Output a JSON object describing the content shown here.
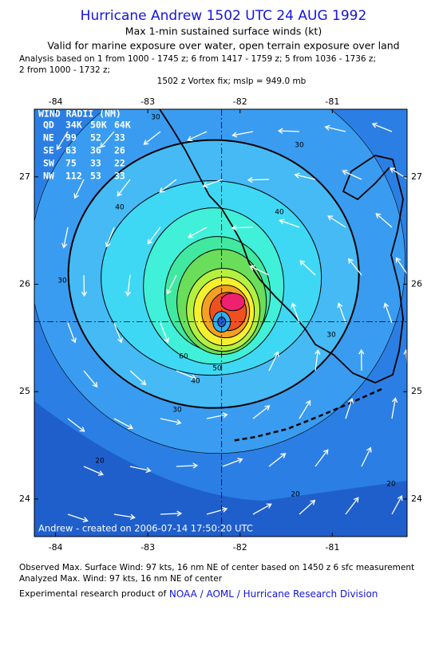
{
  "header": {
    "title": "Hurricane Andrew 1502 UTC 24 AUG 1992",
    "subtitle": "Max 1-min sustained surface winds (kt)",
    "validity": "Valid for marine exposure over water, open terrain exposure over land",
    "analysis_1": "Analysis based on  1 from 1000 - 1745 z;  6 from 1417 - 1759 z;  5 from 1036 - 1736 z;",
    "analysis_2": "2 from 1000 - 1732 z;",
    "vortex_fix": "1502 z Vortex fix; mslp = 949.0 mb"
  },
  "map": {
    "xlim": [
      -84.23,
      -80.19
    ],
    "ylim": [
      23.65,
      27.63
    ],
    "lon_ticks": [
      -84,
      -83,
      -82,
      -81
    ],
    "lat_ticks": [
      24,
      25,
      26,
      27
    ],
    "center": {
      "lon": -82.2,
      "lat": 25.65
    },
    "wind_radii": {
      "title": "WIND RADII (NM)",
      "columns": [
        "QD",
        "34K",
        "50K",
        "64K"
      ],
      "rows": [
        [
          "NE",
          "99",
          "52",
          "33"
        ],
        [
          "SE",
          "63",
          "36",
          "26"
        ],
        [
          "SW",
          "75",
          "33",
          "22"
        ],
        [
          "NW",
          "112",
          "53",
          "33"
        ]
      ]
    },
    "contour_labels": [
      30,
      30,
      40,
      40,
      30,
      30,
      60,
      50,
      40,
      30,
      20,
      20,
      20
    ],
    "credit": "Andrew - created on 2006-07-14 17:50:20 UTC"
  },
  "footer": {
    "observed": "Observed Max. Surface Wind: 97 kts, 16 nm NE of center based on 1450 z 6 sfc measurement",
    "analyzed": "Analyzed Max. Wind: 97 kts, 16 nm NE of center",
    "product": "Experimental research product of",
    "link": "NOAA / AOML / Hurricane Research Division"
  }
}
